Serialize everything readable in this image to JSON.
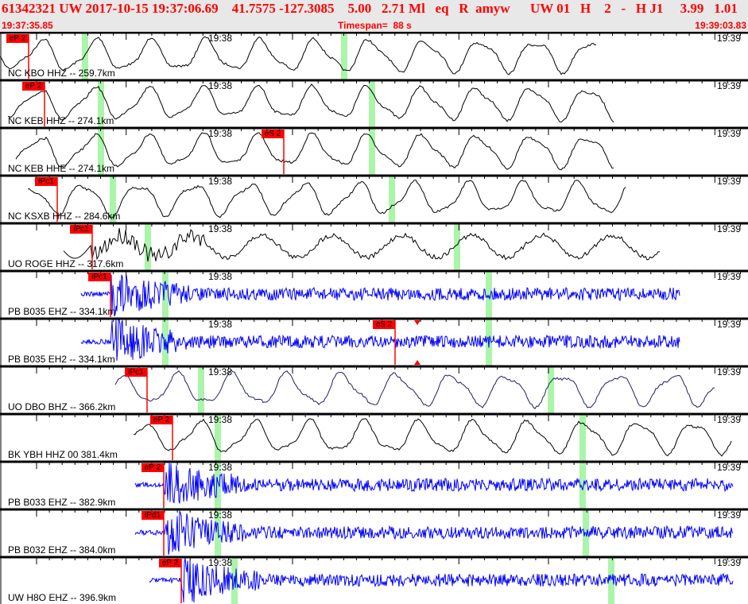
{
  "header": {
    "line1": "61342321 UW 2017-10-15 19:37:06.69    41.7575 -127.3085    5.00   2.71 Ml   eq   R  amyw      UW 01   H    2   -   H J1     3.99   1.01",
    "start_time": "19:37:35.85",
    "timespan": "Timespan=  88 s",
    "end_time": "19:39:03.83"
  },
  "time_ticks": {
    "left": "19:38",
    "right": "19:39"
  },
  "colors": {
    "pick": "#ff0000",
    "window": "#aaf5aa",
    "short_period": "#0000ff",
    "broadband": "#000000",
    "dbo": "#202060"
  },
  "channels": [
    {
      "label": "NC KBO HHZ -- 259.7km",
      "pick": "eP 2"
    },
    {
      "label": "NC KEB HHZ -- 274.1km",
      "pick": "eP 2"
    },
    {
      "label": "NC KEB HHE -- 274.1km",
      "pick": "eS 2"
    },
    {
      "label": "NC KSXB HHZ -- 284.6km",
      "pick": "iPc1"
    },
    {
      "label": "UO ROGE HHZ -- 317.6km",
      "pick": "iPc1"
    },
    {
      "label": "PB B035 EHZ -- 334.1km",
      "pick": "iPc1"
    },
    {
      "label": "PB B035 EH2 -- 334.1km",
      "pick": "eS 2"
    },
    {
      "label": "UO DBO BHZ -- 366.2km",
      "pick": "iPc1"
    },
    {
      "label": "BK YBH HHZ 00 381.4km",
      "pick": "eP 2"
    },
    {
      "label": "PB B033 EHZ -- 382.9km",
      "pick": "eP 2"
    },
    {
      "label": "PB B032 EHZ -- 384.0km",
      "pick": "iPd1"
    },
    {
      "label": "UW H8O EHZ -- 396.9km",
      "pick": "eP 2"
    }
  ]
}
